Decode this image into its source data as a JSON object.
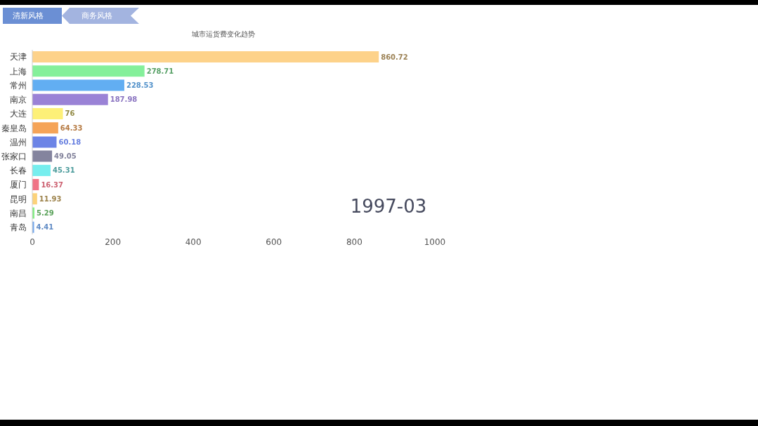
{
  "chart_data": {
    "type": "bar",
    "orientation": "horizontal",
    "title": "城市运货费变化趋势",
    "categories": [
      "天津",
      "上海",
      "常州",
      "南京",
      "大连",
      "秦皇岛",
      "温州",
      "张家口",
      "长春",
      "厦门",
      "昆明",
      "南昌",
      "青岛"
    ],
    "values": [
      860.72,
      278.71,
      228.53,
      187.98,
      76,
      64.33,
      60.18,
      49.05,
      45.31,
      16.37,
      11.93,
      5.29,
      4.41
    ],
    "colors": [
      "#fdd28a",
      "#84f09a",
      "#62aef2",
      "#9a82d6",
      "#fdf078",
      "#f5a458",
      "#6c84e6",
      "#84849e",
      "#76eeee",
      "#f07486",
      "#fcd27a",
      "#86ee86",
      "#74a8ee"
    ],
    "xlim": [
      0,
      1000
    ],
    "xticks": [
      0,
      200,
      400,
      600,
      800,
      1000
    ],
    "data_labels": true,
    "annotations": [
      "清新风格",
      "商务风格",
      "1997-03"
    ]
  }
}
